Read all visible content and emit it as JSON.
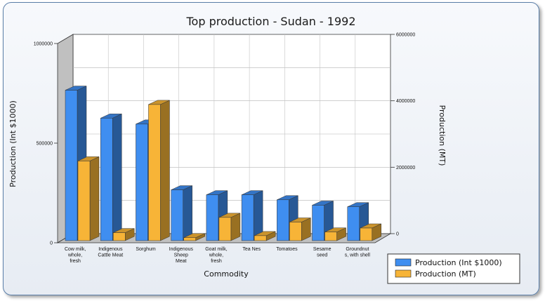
{
  "chart_data": {
    "type": "bar",
    "title": "Top production - Sudan - 1992",
    "xlabel": "Commodity",
    "ylabel": "Production (Int $1000)",
    "y2label": "Production (MT)",
    "ylim": [
      0,
      1000000
    ],
    "y2lim": [
      0,
      6000000
    ],
    "yticks": [
      "0",
      "500000",
      "1000000"
    ],
    "y2ticks": [
      "0",
      "2000000",
      "4000000",
      "6000000"
    ],
    "categories": [
      [
        "Cow milk,",
        "whole,",
        "fresh"
      ],
      [
        "Indigenous",
        "Cattle Meat"
      ],
      [
        "Sorghum"
      ],
      [
        "Indigenous",
        "Sheep",
        "Meat"
      ],
      [
        "Goat milk,",
        "whole,",
        "fresh"
      ],
      [
        "Tea Nes"
      ],
      [
        "Tomatoes"
      ],
      [
        "Sesame",
        "seed"
      ],
      [
        "Groundnut",
        "s, with shell"
      ]
    ],
    "series": [
      {
        "name": "Production (Int $1000)",
        "axis": "left",
        "color": "#3f8ef0",
        "values": [
          755000,
          615000,
          585000,
          255000,
          230000,
          230000,
          205000,
          178000,
          170000
        ]
      },
      {
        "name": "Production (MT)",
        "axis": "right",
        "color": "#f7b437",
        "values": [
          2400000,
          240000,
          4100000,
          90000,
          700000,
          150000,
          560000,
          260000,
          380000
        ]
      }
    ],
    "grid": true,
    "legend": "bottom-right"
  }
}
